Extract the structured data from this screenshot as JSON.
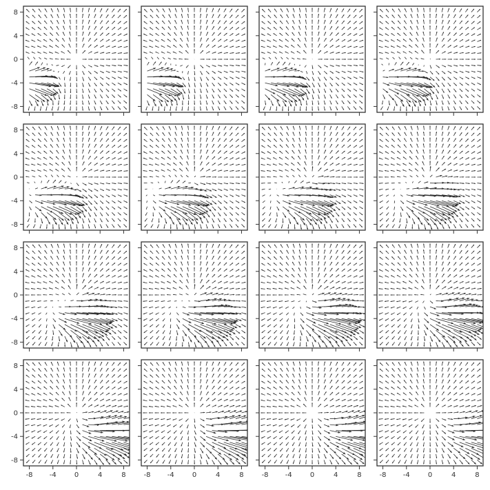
{
  "chart_data": {
    "type": "quiver",
    "layout": {
      "rows": 4,
      "cols": 4
    },
    "shared_axes": true,
    "xlim": [
      -9,
      9
    ],
    "ylim": [
      -9,
      9
    ],
    "x_ticks": [
      -8,
      -4,
      0,
      4,
      8
    ],
    "y_ticks": [
      8,
      4,
      0,
      -4,
      -8
    ],
    "x_tick_labels": [
      "-8",
      "-4",
      "0",
      "4",
      "8"
    ],
    "y_tick_labels": [
      "8",
      "4",
      "0",
      "-4",
      "-8"
    ],
    "grid": false,
    "arrow_color": "#2b2b2b",
    "frame_color": "#333333",
    "vector_grid": {
      "x_min": -8,
      "x_max": 8,
      "y_min": -8,
      "y_max": 8,
      "count": 17
    },
    "field": {
      "description": "radial unit-direction field about the origin plus a jet-like disturbance whose center moves right across frames",
      "background_scale": 0.8,
      "jet_strength": 4.8,
      "jet_halfwidth_x": 3.6,
      "jet_halfwidth_y": 2.6
    },
    "panels": [
      {
        "jet_center": [
          -7.6,
          -3.6
        ]
      },
      {
        "jet_center": [
          -6.6,
          -3.6
        ]
      },
      {
        "jet_center": [
          -5.6,
          -3.6
        ]
      },
      {
        "jet_center": [
          -4.6,
          -3.6
        ]
      },
      {
        "jet_center": [
          -3.8,
          -3.6
        ]
      },
      {
        "jet_center": [
          -2.8,
          -3.6
        ]
      },
      {
        "jet_center": [
          -1.8,
          -3.6
        ]
      },
      {
        "jet_center": [
          -0.8,
          -3.6
        ]
      },
      {
        "jet_center": [
          0.4,
          -3.6
        ]
      },
      {
        "jet_center": [
          1.4,
          -3.6
        ]
      },
      {
        "jet_center": [
          2.4,
          -3.6
        ]
      },
      {
        "jet_center": [
          3.4,
          -3.6
        ]
      },
      {
        "jet_center": [
          4.8,
          -3.6
        ]
      },
      {
        "jet_center": [
          5.8,
          -3.6
        ]
      },
      {
        "jet_center": [
          6.8,
          -3.6
        ]
      },
      {
        "jet_center": [
          7.8,
          -3.6
        ]
      }
    ]
  }
}
